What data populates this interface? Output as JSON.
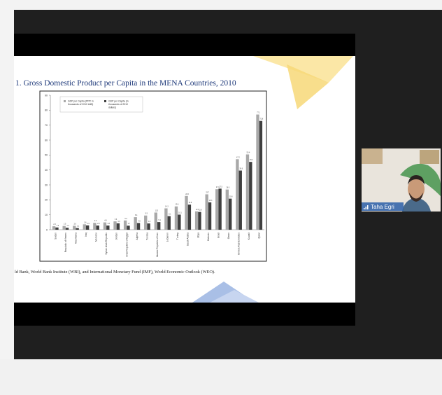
{
  "slide": {
    "title": "1. Gross Domestic Product per Capita in the MENA Countries, 2010",
    "source": "ld Bank, World Bank Institute (WBI), and International Monetary Fund (IMF), World Economic Outlook (WEO)."
  },
  "participant": {
    "name": "Taha Egri"
  },
  "chart_data": {
    "type": "bar",
    "categories": [
      "Sudan",
      "Republic of Yemen",
      "Mauritania",
      "Iraq",
      "Morocco",
      "Syrian Arab Republic",
      "Jordan",
      "Arab Republic of Egypt",
      "Algeria",
      "Tunisia",
      "Islamic Republic of Iran",
      "Lebanon",
      "Turkey",
      "Saudi Arabia",
      "Libya",
      "Bahrain",
      "Israel",
      "Oman",
      "United Arab Emirates",
      "Kuwait",
      "Qatar"
    ],
    "series": [
      {
        "name": "GDP per Capita (PPP, in thousands of 2010 intl$)",
        "color": "#a9a9a9",
        "values": [
          2.3,
          2.5,
          2.6,
          3.6,
          4.6,
          4.9,
          5.6,
          6.2,
          8.4,
          9.5,
          11.5,
          14.3,
          15.6,
          22.6,
          12.3,
          23.7,
          27.1,
          26.9,
          47.2,
          50.4,
          77.1
        ]
      },
      {
        "name": "GDP per Capita (in thousands of 2010 dollars)",
        "color": "#3f3f3f",
        "values": [
          1.5,
          1.3,
          1.1,
          2.9,
          2.8,
          2.8,
          4.3,
          2.7,
          4.5,
          4.2,
          5.1,
          9.1,
          10.1,
          16.8,
          11.9,
          18.3,
          27.5,
          20.8,
          39.6,
          45.4,
          72.8
        ]
      }
    ],
    "ylim": [
      0,
      90
    ],
    "yticks": [
      0,
      10,
      20,
      30,
      40,
      50,
      60,
      70,
      80,
      90
    ],
    "grid": false,
    "legend": "upper left"
  }
}
